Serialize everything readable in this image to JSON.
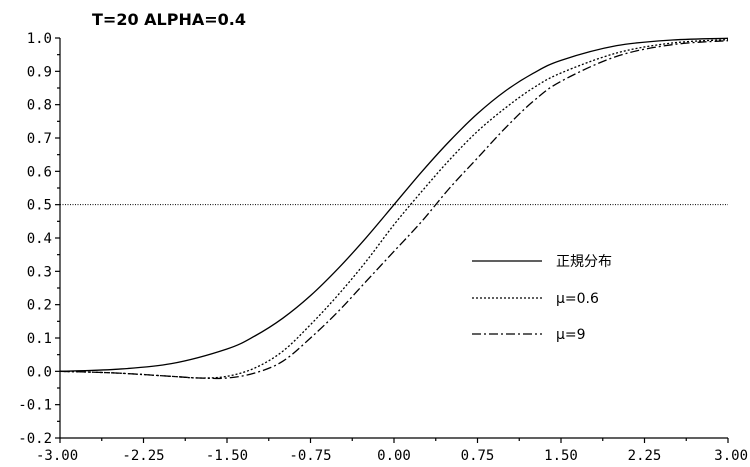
{
  "chart_data": {
    "type": "line",
    "title": "T=20  ALPHA=0.4",
    "xlabel": "",
    "ylabel": "",
    "xlim": [
      -3.0,
      3.0
    ],
    "ylim": [
      -0.2,
      1.0
    ],
    "x_ticks": [
      "-3.00",
      "-2.25",
      "-1.50",
      "-0.75",
      "0.00",
      "0.75",
      "1.50",
      "2.25",
      "3.00"
    ],
    "y_ticks": [
      "-0.2",
      "-0.1",
      "0.0",
      "0.1",
      "0.2",
      "0.3",
      "0.4",
      "0.5",
      "0.6",
      "0.7",
      "0.8",
      "0.9",
      "1.0"
    ],
    "grid": false,
    "legend_position": "right-center",
    "reference_lines": [
      {
        "y": 0.5
      }
    ],
    "series": [
      {
        "name": "正規分布",
        "style": "solid",
        "x": [
          -3.0,
          -2.5,
          -2.0,
          -1.5,
          -1.25,
          -1.0,
          -0.75,
          -0.5,
          -0.25,
          0.0,
          0.25,
          0.5,
          0.75,
          1.0,
          1.25,
          1.5,
          2.0,
          2.5,
          3.0
        ],
        "y": [
          0.0,
          0.006,
          0.023,
          0.067,
          0.106,
          0.159,
          0.227,
          0.309,
          0.401,
          0.5,
          0.599,
          0.691,
          0.773,
          0.841,
          0.894,
          0.933,
          0.977,
          0.994,
          0.999
        ]
      },
      {
        "name": "μ=0.6",
        "style": "dotted",
        "x": [
          -3.0,
          -2.5,
          -2.0,
          -1.75,
          -1.5,
          -1.25,
          -1.0,
          -0.75,
          -0.5,
          -0.25,
          0.0,
          0.25,
          0.5,
          0.75,
          1.0,
          1.25,
          1.5,
          2.0,
          2.5,
          3.0
        ],
        "y": [
          0.0,
          -0.005,
          -0.015,
          -0.02,
          -0.015,
          0.01,
          0.06,
          0.14,
          0.23,
          0.33,
          0.44,
          0.54,
          0.635,
          0.72,
          0.79,
          0.85,
          0.895,
          0.955,
          0.985,
          0.995
        ]
      },
      {
        "name": "μ=9",
        "style": "dash-dot",
        "x": [
          -3.0,
          -2.5,
          -2.0,
          -1.75,
          -1.5,
          -1.25,
          -1.0,
          -0.75,
          -0.5,
          -0.25,
          0.0,
          0.25,
          0.5,
          0.75,
          1.0,
          1.25,
          1.5,
          2.0,
          2.5,
          3.0
        ],
        "y": [
          0.0,
          -0.005,
          -0.015,
          -0.02,
          -0.02,
          -0.005,
          0.03,
          0.1,
          0.18,
          0.27,
          0.36,
          0.45,
          0.55,
          0.64,
          0.73,
          0.81,
          0.87,
          0.945,
          0.98,
          0.992
        ]
      }
    ]
  }
}
